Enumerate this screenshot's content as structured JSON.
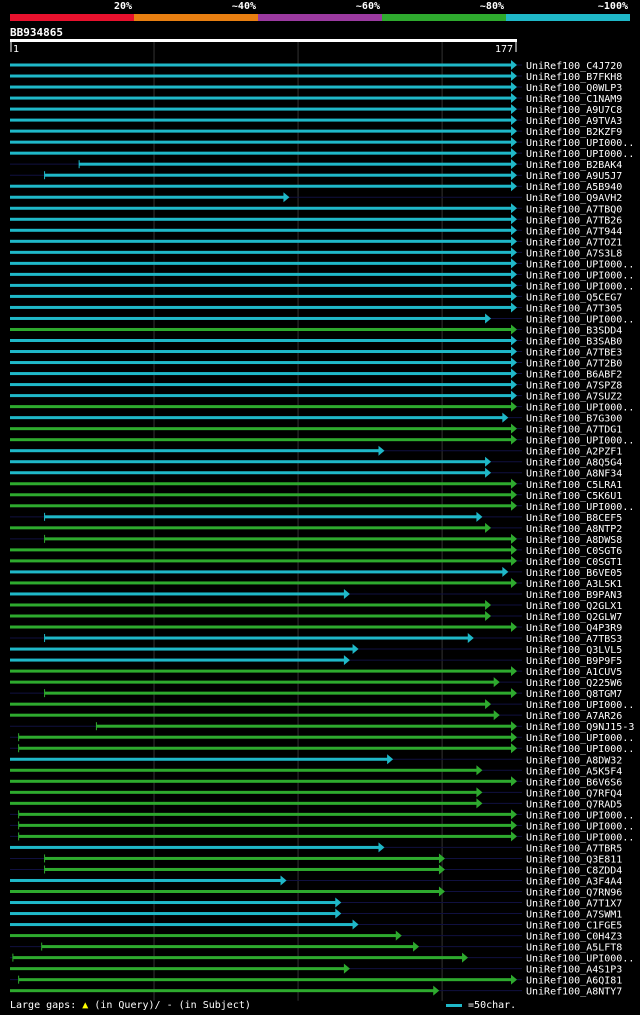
{
  "legend": {
    "labels": [
      "20%",
      "~40%",
      "~60%",
      "~80%",
      "~100%"
    ],
    "colors": [
      "#e8112d",
      "#e87f11",
      "#9b3aa0",
      "#2eaa2e",
      "#1fb8c8"
    ]
  },
  "query_id": "BB934865",
  "footer": {
    "gaps_label": "Large gaps:",
    "query_gap": "(in Query)/",
    "subject_gap": "- (in Subject)",
    "scale_label": "=50char."
  },
  "chart_data": {
    "type": "alignment-overview",
    "title": "BB934865",
    "query_length": 177,
    "axis": {
      "start_label": "1",
      "end_label": "177"
    },
    "hits": [
      {
        "name": "UniRef100_C4J720",
        "start": 1,
        "end": 177,
        "identity": "~100%"
      },
      {
        "name": "UniRef100_B7FKH8",
        "start": 1,
        "end": 177,
        "identity": "~100%"
      },
      {
        "name": "UniRef100_Q0WLP3",
        "start": 1,
        "end": 177,
        "identity": "~100%"
      },
      {
        "name": "UniRef100_C1NAM9",
        "start": 1,
        "end": 177,
        "identity": "~100%"
      },
      {
        "name": "UniRef100_A9U7C8",
        "start": 1,
        "end": 177,
        "identity": "~100%"
      },
      {
        "name": "UniRef100_A9TVA3",
        "start": 1,
        "end": 177,
        "identity": "~100%"
      },
      {
        "name": "UniRef100_B2KZF9",
        "start": 1,
        "end": 177,
        "identity": "~100%"
      },
      {
        "name": "UniRef100_UPI000..",
        "start": 1,
        "end": 177,
        "identity": "~100%"
      },
      {
        "name": "UniRef100_UPI000..",
        "start": 1,
        "end": 177,
        "identity": "~100%"
      },
      {
        "name": "UniRef100_B2BAK4",
        "start": 25,
        "end": 177,
        "identity": "~100%"
      },
      {
        "name": "UniRef100_A9U5J7",
        "start": 13,
        "end": 177,
        "identity": "~100%"
      },
      {
        "name": "UniRef100_A5B940",
        "start": 1,
        "end": 177,
        "identity": "~100%"
      },
      {
        "name": "UniRef100_Q9AVH2",
        "start": 1,
        "end": 98,
        "identity": "~100%"
      },
      {
        "name": "UniRef100_A7TBQ0",
        "start": 1,
        "end": 177,
        "identity": "~100%"
      },
      {
        "name": "UniRef100_A7TB26",
        "start": 1,
        "end": 177,
        "identity": "~100%"
      },
      {
        "name": "UniRef100_A7T944",
        "start": 1,
        "end": 177,
        "identity": "~100%"
      },
      {
        "name": "UniRef100_A7TOZ1",
        "start": 1,
        "end": 177,
        "identity": "~100%"
      },
      {
        "name": "UniRef100_A7S3L8",
        "start": 1,
        "end": 177,
        "identity": "~100%"
      },
      {
        "name": "UniRef100_UPI000..",
        "start": 1,
        "end": 177,
        "identity": "~100%"
      },
      {
        "name": "UniRef100_UPI000..",
        "start": 1,
        "end": 177,
        "identity": "~100%"
      },
      {
        "name": "UniRef100_UPI000..",
        "start": 1,
        "end": 177,
        "identity": "~100%"
      },
      {
        "name": "UniRef100_Q5CEG7",
        "start": 1,
        "end": 177,
        "identity": "~100%"
      },
      {
        "name": "UniRef100_A7T305",
        "start": 1,
        "end": 177,
        "identity": "~100%"
      },
      {
        "name": "UniRef100_UPI000..",
        "start": 1,
        "end": 168,
        "identity": "~100%"
      },
      {
        "name": "UniRef100_B3SDD4",
        "start": 1,
        "end": 177,
        "identity": "~80%"
      },
      {
        "name": "UniRef100_B3SAB0",
        "start": 1,
        "end": 177,
        "identity": "~100%"
      },
      {
        "name": "UniRef100_A7TBE3",
        "start": 1,
        "end": 177,
        "identity": "~100%"
      },
      {
        "name": "UniRef100_A7T2B0",
        "start": 1,
        "end": 177,
        "identity": "~100%"
      },
      {
        "name": "UniRef100_B6ABF2",
        "start": 1,
        "end": 177,
        "identity": "~100%"
      },
      {
        "name": "UniRef100_A7SPZ8",
        "start": 1,
        "end": 177,
        "identity": "~100%"
      },
      {
        "name": "UniRef100_A7SUZ2",
        "start": 1,
        "end": 177,
        "identity": "~100%"
      },
      {
        "name": "UniRef100_UPI000..",
        "start": 1,
        "end": 177,
        "identity": "~80%"
      },
      {
        "name": "UniRef100_B7G300",
        "start": 1,
        "end": 174,
        "identity": "~100%"
      },
      {
        "name": "UniRef100_A7TDG1",
        "start": 1,
        "end": 177,
        "identity": "~80%"
      },
      {
        "name": "UniRef100_UPI000..",
        "start": 1,
        "end": 177,
        "identity": "~80%"
      },
      {
        "name": "UniRef100_A2PZF1",
        "start": 1,
        "end": 131,
        "identity": "~100%"
      },
      {
        "name": "UniRef100_A8Q5G4",
        "start": 1,
        "end": 168,
        "identity": "~100%"
      },
      {
        "name": "UniRef100_A8NF34",
        "start": 1,
        "end": 168,
        "identity": "~100%"
      },
      {
        "name": "UniRef100_C5LRA1",
        "start": 1,
        "end": 177,
        "identity": "~80%"
      },
      {
        "name": "UniRef100_C5K6U1",
        "start": 1,
        "end": 177,
        "identity": "~80%"
      },
      {
        "name": "UniRef100_UPI000..",
        "start": 1,
        "end": 177,
        "identity": "~80%"
      },
      {
        "name": "UniRef100_B8CEF5",
        "start": 13,
        "end": 165,
        "identity": "~100%"
      },
      {
        "name": "UniRef100_A8NTP2",
        "start": 1,
        "end": 168,
        "identity": "~80%"
      },
      {
        "name": "UniRef100_A8DWS8",
        "start": 13,
        "end": 177,
        "identity": "~80%"
      },
      {
        "name": "UniRef100_C0SGT6",
        "start": 1,
        "end": 177,
        "identity": "~80%"
      },
      {
        "name": "UniRef100_C0SGT1",
        "start": 1,
        "end": 177,
        "identity": "~80%"
      },
      {
        "name": "UniRef100_B6VE05",
        "start": 1,
        "end": 174,
        "identity": "~100%"
      },
      {
        "name": "UniRef100_A3LSK1",
        "start": 1,
        "end": 177,
        "identity": "~80%"
      },
      {
        "name": "UniRef100_B9PAN3",
        "start": 1,
        "end": 119,
        "identity": "~100%"
      },
      {
        "name": "UniRef100_Q2GLX1",
        "start": 1,
        "end": 168,
        "identity": "~80%"
      },
      {
        "name": "UniRef100_Q2GLW7",
        "start": 1,
        "end": 168,
        "identity": "~80%"
      },
      {
        "name": "UniRef100_Q4P3R9",
        "start": 1,
        "end": 177,
        "identity": "~80%"
      },
      {
        "name": "UniRef100_A7TBS3",
        "start": 13,
        "end": 162,
        "identity": "~100%"
      },
      {
        "name": "UniRef100_Q3LVL5",
        "start": 1,
        "end": 122,
        "identity": "~100%"
      },
      {
        "name": "UniRef100_B9P9F5",
        "start": 1,
        "end": 119,
        "identity": "~100%"
      },
      {
        "name": "UniRef100_A1CUV5",
        "start": 1,
        "end": 177,
        "identity": "~80%"
      },
      {
        "name": "UniRef100_Q225W6",
        "start": 1,
        "end": 171,
        "identity": "~80%"
      },
      {
        "name": "UniRef100_Q8TGM7",
        "start": 13,
        "end": 177,
        "identity": "~80%"
      },
      {
        "name": "UniRef100_UPI000..",
        "start": 1,
        "end": 168,
        "identity": "~80%"
      },
      {
        "name": "UniRef100_A7AR26",
        "start": 1,
        "end": 171,
        "identity": "~80%"
      },
      {
        "name": "UniRef100_Q9NJ15-3",
        "start": 31,
        "end": 177,
        "identity": "~80%"
      },
      {
        "name": "UniRef100_UPI000..",
        "start": 4,
        "end": 177,
        "identity": "~80%"
      },
      {
        "name": "UniRef100_UPI000..",
        "start": 4,
        "end": 177,
        "identity": "~80%"
      },
      {
        "name": "UniRef100_A8DW32",
        "start": 1,
        "end": 134,
        "identity": "~100%"
      },
      {
        "name": "UniRef100_A5K5F4",
        "start": 1,
        "end": 165,
        "identity": "~80%"
      },
      {
        "name": "UniRef100_B6V6S6",
        "start": 1,
        "end": 177,
        "identity": "~80%"
      },
      {
        "name": "UniRef100_Q7RFQ4",
        "start": 1,
        "end": 165,
        "identity": "~80%"
      },
      {
        "name": "UniRef100_Q7RAD5",
        "start": 1,
        "end": 165,
        "identity": "~80%"
      },
      {
        "name": "UniRef100_UPI000..",
        "start": 4,
        "end": 177,
        "identity": "~80%"
      },
      {
        "name": "UniRef100_UPI000..",
        "start": 4,
        "end": 177,
        "identity": "~80%"
      },
      {
        "name": "UniRef100_UPI000..",
        "start": 4,
        "end": 177,
        "identity": "~80%"
      },
      {
        "name": "UniRef100_A7TBR5",
        "start": 1,
        "end": 131,
        "identity": "~100%"
      },
      {
        "name": "UniRef100_Q3E811",
        "start": 13,
        "end": 152,
        "identity": "~80%"
      },
      {
        "name": "UniRef100_C8ZDD4",
        "start": 13,
        "end": 152,
        "identity": "~80%"
      },
      {
        "name": "UniRef100_A3F4A4",
        "start": 1,
        "end": 97,
        "identity": "~100%"
      },
      {
        "name": "UniRef100_Q7RN96",
        "start": 1,
        "end": 152,
        "identity": "~80%"
      },
      {
        "name": "UniRef100_A7T1X7",
        "start": 1,
        "end": 116,
        "identity": "~100%"
      },
      {
        "name": "UniRef100_A7SWM1",
        "start": 1,
        "end": 116,
        "identity": "~100%"
      },
      {
        "name": "UniRef100_C1FGE5",
        "start": 1,
        "end": 122,
        "identity": "~100%"
      },
      {
        "name": "UniRef100_C0H4Z3",
        "start": 1,
        "end": 137,
        "identity": "~80%"
      },
      {
        "name": "UniRef100_A5LFT8",
        "start": 12,
        "end": 143,
        "identity": "~80%"
      },
      {
        "name": "UniRef100_UPI000..",
        "start": 2,
        "end": 160,
        "identity": "~80%"
      },
      {
        "name": "UniRef100_A4S1P3",
        "start": 1,
        "end": 119,
        "identity": "~80%"
      },
      {
        "name": "UniRef100_A6QI81",
        "start": 4,
        "end": 177,
        "identity": "~80%"
      },
      {
        "name": "UniRef100_A8NTY7",
        "start": 1,
        "end": 150,
        "identity": "~80%"
      }
    ]
  }
}
